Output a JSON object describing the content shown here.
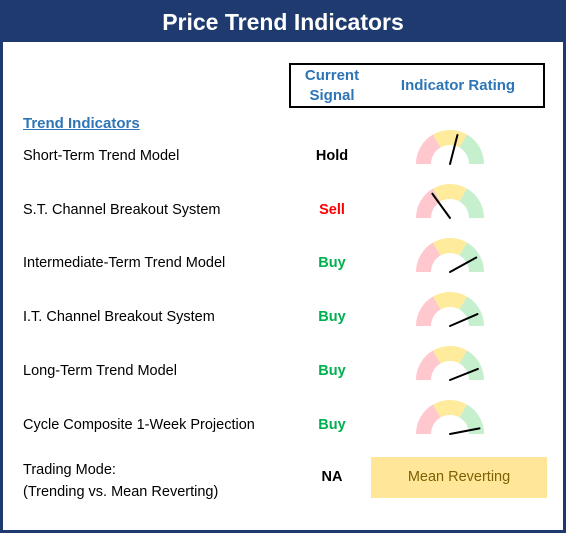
{
  "title": "Price Trend Indicators",
  "header": {
    "signal_line1": "Current",
    "signal_line2": "Signal",
    "rating": "Indicator Rating"
  },
  "section_title": "Trend Indicators",
  "colors": {
    "title_bg": "#1f3a6e",
    "header_text": "#2e75b6",
    "buy": "#00b050",
    "sell": "#ff0000",
    "hold": "#000000",
    "gauge_red": "#ffc7ce",
    "gauge_yellow": "#ffeb9c",
    "gauge_green": "#c6efce",
    "mode_bg": "#ffe699"
  },
  "rows": [
    {
      "label": "Short-Term Trend Model",
      "signal": "Hold",
      "signal_type": "hold",
      "rating_fraction": 0.58
    },
    {
      "label": "S.T. Channel Breakout System",
      "signal": "Sell",
      "signal_type": "sell",
      "rating_fraction": 0.3
    },
    {
      "label": "Intermediate-Term Trend Model",
      "signal": "Buy",
      "signal_type": "buy",
      "rating_fraction": 0.84
    },
    {
      "label": "I.T. Channel Breakout System",
      "signal": "Buy",
      "signal_type": "buy",
      "rating_fraction": 0.87
    },
    {
      "label": "Long-Term Trend Model",
      "signal": "Buy",
      "signal_type": "buy",
      "rating_fraction": 0.88
    },
    {
      "label": "Cycle Composite 1-Week Projection",
      "signal": "Buy",
      "signal_type": "buy",
      "rating_fraction": 0.94
    }
  ],
  "trading_mode": {
    "label_line1": "Trading Mode:",
    "label_line2": "(Trending vs. Mean Reverting)",
    "signal": "NA",
    "rating": "Mean Reverting"
  }
}
